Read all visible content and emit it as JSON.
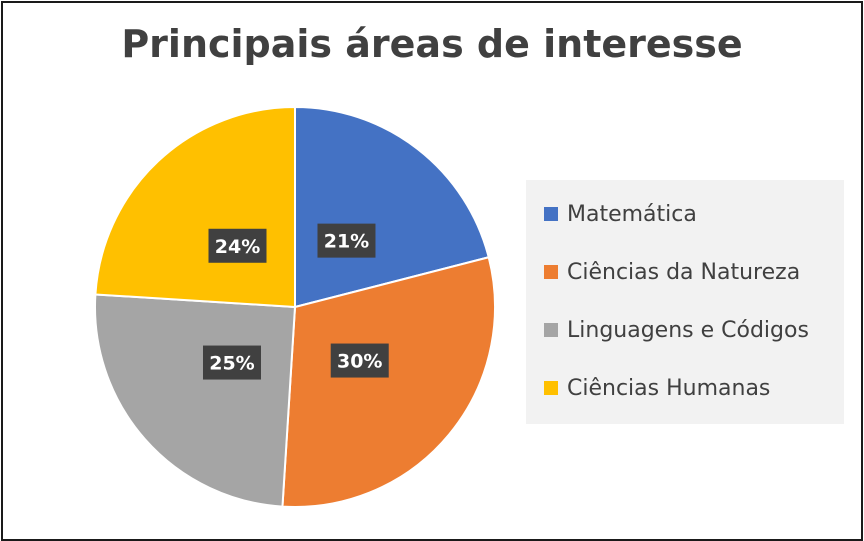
{
  "chart_data": {
    "type": "pie",
    "title": "Principais áreas de interesse",
    "slices": [
      {
        "name": "Matemática",
        "value": 21,
        "label": "21%",
        "color": "#4472C4"
      },
      {
        "name": "Ciências da Natureza",
        "value": 30,
        "label": "30%",
        "color": "#ED7D31"
      },
      {
        "name": "Linguagens e Códigos",
        "value": 25,
        "label": "25%",
        "color": "#A5A5A5"
      },
      {
        "name": "Ciências Humanas",
        "value": 24,
        "label": "24%",
        "color": "#FFC000"
      }
    ],
    "legend_position": "right"
  }
}
